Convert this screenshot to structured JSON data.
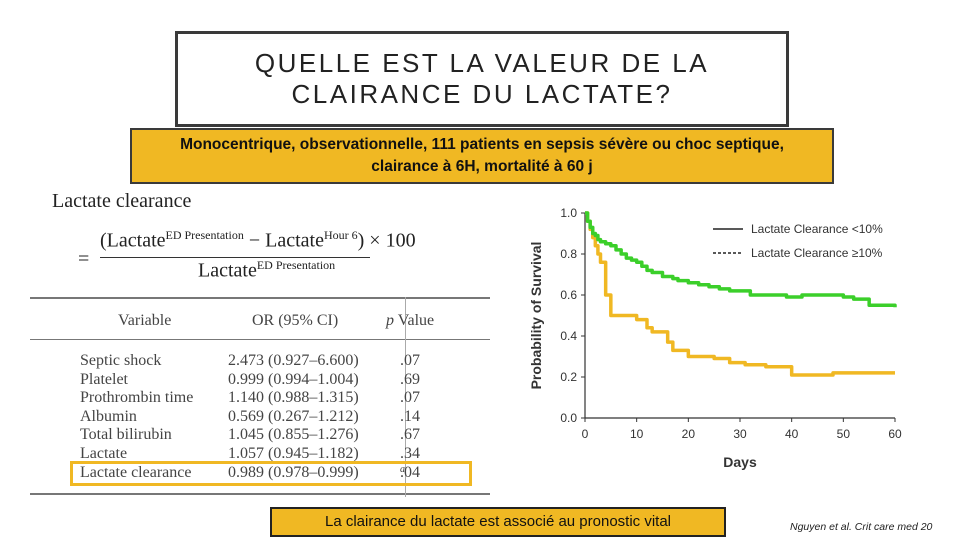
{
  "title": {
    "line1": "QUELLE EST LA VALEUR DE LA",
    "line2": "CLAIRANCE DU LACTATE?"
  },
  "subtitle": {
    "line1": "Monocentrique, observationnelle, 111 patients en sepsis sévère ou choc septique,",
    "line2": "clairance à 6H, mortalité à 60 j"
  },
  "formula": {
    "title": "Lactate clearance",
    "eq": "=",
    "num_a": "(Lactate",
    "num_a_sup": "ED Presentation",
    "num_b": " − Lactate",
    "num_b_sup": "Hour 6",
    "num_c": ") × 100",
    "den": "Lactate",
    "den_sup": "ED Presentation"
  },
  "table": {
    "headers": {
      "variable": "Variable",
      "or": "OR (95% CI)",
      "p": "p Value"
    },
    "rows": [
      {
        "variable": "Septic shock",
        "or": "2.473 (0.927–6.600)",
        "p": ".07",
        "p_sup": ""
      },
      {
        "variable": "Platelet",
        "or": "0.999 (0.994–1.004)",
        "p": ".69",
        "p_sup": ""
      },
      {
        "variable": "Prothrombin time",
        "or": "1.140 (0.988–1.315)",
        "p": ".07",
        "p_sup": ""
      },
      {
        "variable": "Albumin",
        "or": "0.569 (0.267–1.212)",
        "p": ".14",
        "p_sup": ""
      },
      {
        "variable": "Total bilirubin",
        "or": "1.045 (0.855–1.276)",
        "p": ".67",
        "p_sup": ""
      },
      {
        "variable": "Lactate",
        "or": "1.057 (0.945–1.182)",
        "p": ".34",
        "p_sup": ""
      },
      {
        "variable": "Lactate clearance",
        "or": "0.989 (0.978–0.999)",
        "p": ".04",
        "p_sup": "a"
      }
    ],
    "highlight_color": "#f0b823"
  },
  "chart_data": {
    "type": "line",
    "xlabel": "Days",
    "ylabel": "Probability of Survival",
    "xlim": [
      0,
      60
    ],
    "ylim": [
      0,
      1.0
    ],
    "xticks": [
      "0",
      "10",
      "20",
      "30",
      "40",
      "50",
      "60"
    ],
    "yticks": [
      "0.0",
      "0.2",
      "0.4",
      "0.6",
      "0.8",
      "1.0"
    ],
    "legend_position": "top-right",
    "series": [
      {
        "name": "Lactate Clearance <10%",
        "color": "#f0b823",
        "x": [
          0,
          0.5,
          1,
          1.5,
          2,
          2.5,
          3,
          4,
          5,
          10,
          12,
          13,
          16,
          17,
          20,
          25,
          28,
          31,
          35,
          40,
          48,
          52,
          60
        ],
        "y": [
          1.0,
          0.96,
          0.92,
          0.88,
          0.84,
          0.8,
          0.76,
          0.6,
          0.5,
          0.48,
          0.44,
          0.42,
          0.37,
          0.33,
          0.3,
          0.29,
          0.27,
          0.26,
          0.25,
          0.21,
          0.22,
          0.22,
          0.22
        ]
      },
      {
        "name": "Lactate Clearance ≥10%",
        "color": "#3bcf2a",
        "x": [
          0,
          0.5,
          1,
          1.5,
          2,
          2.5,
          3,
          4,
          5,
          6,
          7,
          8,
          9,
          10,
          11,
          12,
          13,
          15,
          17,
          18,
          20,
          22,
          24,
          26,
          28,
          32,
          35,
          39,
          42,
          45,
          48,
          50,
          52,
          55,
          60
        ],
        "y": [
          1.0,
          0.96,
          0.93,
          0.9,
          0.89,
          0.87,
          0.86,
          0.85,
          0.84,
          0.82,
          0.8,
          0.78,
          0.77,
          0.76,
          0.74,
          0.72,
          0.71,
          0.69,
          0.68,
          0.67,
          0.66,
          0.65,
          0.64,
          0.63,
          0.62,
          0.6,
          0.6,
          0.59,
          0.6,
          0.6,
          0.6,
          0.59,
          0.58,
          0.55,
          0.54
        ]
      }
    ]
  },
  "bottom_note": "La clairance du lactate est associé au pronostic vital",
  "citation": "Nguyen et al. Crit care med 20"
}
